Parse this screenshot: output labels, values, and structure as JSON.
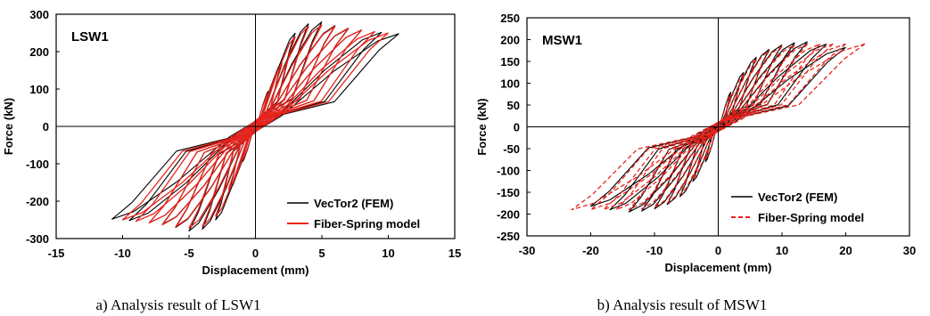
{
  "chart_data": [
    {
      "type": "line",
      "panel_label": "LSW1",
      "caption": "a) Analysis result of LSW1",
      "xlabel": "Displacement (mm)",
      "ylabel": "Force (kN)",
      "xlim": [
        -15,
        15
      ],
      "ylim": [
        -300,
        300
      ],
      "xticks": [
        "-15",
        "-10",
        "-5",
        "0",
        "5",
        "10",
        "15"
      ],
      "yticks": [
        "300",
        "200",
        "100",
        "0",
        "-100",
        "-200",
        "-300"
      ],
      "grid": false,
      "legend_position": "bottom-right",
      "series": [
        {
          "name": "VecTor2 (FEM)",
          "color": "#000000",
          "dash": "solid",
          "cycles": [
            {
              "dmax": 1.0,
              "fmax": 95
            },
            {
              "dmax": 2.0,
              "fmax": 170
            },
            {
              "dmax": 3.0,
              "fmax": 250
            },
            {
              "dmax": 4.0,
              "fmax": 275
            },
            {
              "dmax": 5.0,
              "fmax": 280
            },
            {
              "dmax": 6.0,
              "fmax": 270
            },
            {
              "dmax": 7.0,
              "fmax": 262
            },
            {
              "dmax": 8.0,
              "fmax": 258
            },
            {
              "dmax": 9.5,
              "fmax": 252
            },
            {
              "dmax": 10.8,
              "fmax": 248
            }
          ]
        },
        {
          "name": "Fiber-Spring model",
          "color": "#e8231c",
          "dash": "solid",
          "cycles": [
            {
              "dmax": 1.0,
              "fmax": 90
            },
            {
              "dmax": 2.0,
              "fmax": 165
            },
            {
              "dmax": 3.0,
              "fmax": 240
            },
            {
              "dmax": 4.0,
              "fmax": 268
            },
            {
              "dmax": 5.0,
              "fmax": 272
            },
            {
              "dmax": 6.0,
              "fmax": 268
            },
            {
              "dmax": 7.0,
              "fmax": 263
            },
            {
              "dmax": 8.0,
              "fmax": 258
            },
            {
              "dmax": 9.0,
              "fmax": 254
            },
            {
              "dmax": 10.0,
              "fmax": 250
            }
          ]
        }
      ]
    },
    {
      "type": "line",
      "panel_label": "MSW1",
      "caption": "b) Analysis result of MSW1",
      "xlabel": "Displacement (mm)",
      "ylabel": "Force (kN)",
      "xlim": [
        -30,
        30
      ],
      "ylim": [
        -250,
        250
      ],
      "xticks": [
        "-30",
        "-20",
        "-10",
        "0",
        "10",
        "20",
        "30"
      ],
      "yticks": [
        "250",
        "200",
        "150",
        "100",
        "50",
        "0",
        "-50",
        "-100",
        "-150",
        "-200",
        "-250"
      ],
      "grid": false,
      "legend_position": "bottom-right",
      "series": [
        {
          "name": "VecTor2 (FEM)",
          "color": "#000000",
          "dash": "solid",
          "cycles": [
            {
              "dmax": 2,
              "fmax": 80
            },
            {
              "dmax": 4,
              "fmax": 125
            },
            {
              "dmax": 6,
              "fmax": 160
            },
            {
              "dmax": 8,
              "fmax": 178
            },
            {
              "dmax": 10,
              "fmax": 188
            },
            {
              "dmax": 12,
              "fmax": 193
            },
            {
              "dmax": 14,
              "fmax": 195
            },
            {
              "dmax": 17,
              "fmax": 190
            },
            {
              "dmax": 20,
              "fmax": 182
            }
          ]
        },
        {
          "name": "Fiber-Spring model",
          "color": "#e8231c",
          "dash": "dashed",
          "cycles": [
            {
              "dmax": 2,
              "fmax": 75
            },
            {
              "dmax": 4,
              "fmax": 120
            },
            {
              "dmax": 6,
              "fmax": 155
            },
            {
              "dmax": 8,
              "fmax": 175
            },
            {
              "dmax": 10,
              "fmax": 185
            },
            {
              "dmax": 12,
              "fmax": 188
            },
            {
              "dmax": 14,
              "fmax": 190
            },
            {
              "dmax": 16,
              "fmax": 190
            },
            {
              "dmax": 18,
              "fmax": 190
            },
            {
              "dmax": 20,
              "fmax": 190
            },
            {
              "dmax": 23,
              "fmax": 190
            }
          ]
        }
      ]
    }
  ]
}
